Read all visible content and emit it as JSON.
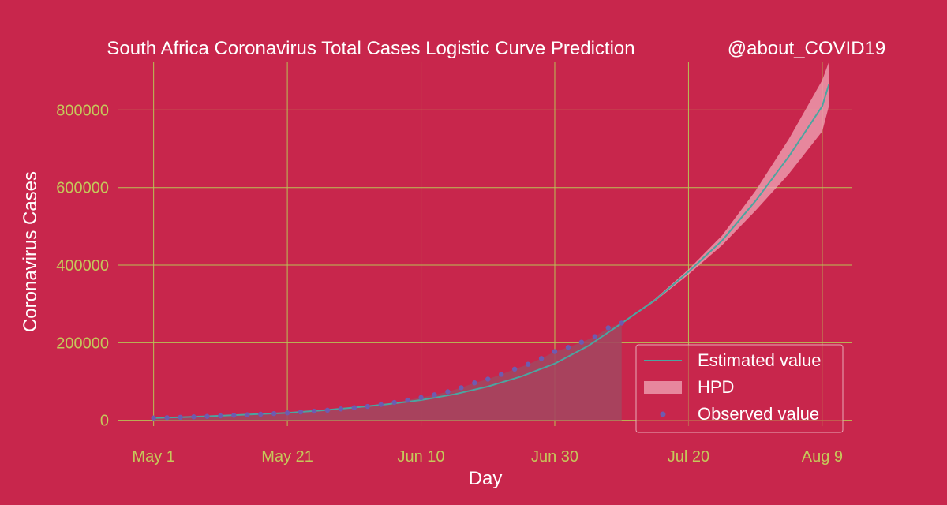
{
  "header": {
    "title": "South Africa Coronavirus Total Cases Logistic Curve Prediction",
    "handle": "@about_COVID19"
  },
  "colors": {
    "background": "#C8264C",
    "grid": "#B9C255",
    "tick_text": "#C5C85A",
    "estimated_line": "#4BA5A0",
    "hpd_fill": "#F1A8B8",
    "observed_points": "#6E5BB0",
    "observed_area": "#A4465F",
    "legend_border": "#E8A9B6"
  },
  "chart_data": {
    "type": "line",
    "title": "South Africa Coronavirus Total Cases Logistic Curve Prediction",
    "xlabel": "Day",
    "ylabel": "Coronavirus Cases",
    "x_tick_labels": [
      "May 1",
      "May 21",
      "Jun 10",
      "Jun 30",
      "Jul 20",
      "Aug 9"
    ],
    "x_tick_days": [
      0,
      20,
      40,
      60,
      80,
      100
    ],
    "xlim": [
      -3.5,
      104.5
    ],
    "y_ticks": [
      0,
      200000,
      400000,
      600000,
      800000
    ],
    "y_tick_labels": [
      "0",
      "200000",
      "400000",
      "600000",
      "800000"
    ],
    "ylim": [
      -15000,
      925000
    ],
    "grid": true,
    "legend_position": "bottom-right",
    "legend": [
      "Estimated value",
      "HPD",
      "Observed value"
    ],
    "x_units": "days since May 1",
    "estimated_days": [
      0,
      5,
      10,
      15,
      20,
      25,
      30,
      35,
      40,
      45,
      50,
      55,
      60,
      65,
      70,
      75,
      80,
      85,
      90,
      95,
      100,
      101
    ],
    "estimated_values": [
      5951,
      8500,
      11700,
      15400,
      19100,
      25300,
      32800,
      41500,
      52100,
      67000,
      87000,
      113000,
      146000,
      191700,
      250000,
      310000,
      383000,
      463000,
      565000,
      680000,
      810000,
      866000
    ],
    "hpd_days": [
      70,
      75,
      80,
      85,
      90,
      95,
      100,
      101
    ],
    "hpd_lower": [
      249000,
      307000,
      376000,
      451000,
      540000,
      635000,
      745000,
      810000
    ],
    "hpd_upper": [
      251000,
      313000,
      389000,
      476000,
      591000,
      725000,
      877000,
      924000
    ],
    "observed_days": [
      0,
      2,
      4,
      6,
      8,
      10,
      12,
      14,
      16,
      18,
      20,
      22,
      24,
      26,
      28,
      30,
      32,
      34,
      36,
      38,
      40,
      42,
      44,
      46,
      48,
      50,
      52,
      54,
      56,
      58,
      60,
      62,
      64,
      66,
      68,
      70
    ],
    "observed_values": [
      5951,
      6800,
      7800,
      8900,
      10000,
      11350,
      12740,
      14350,
      15500,
      17200,
      19140,
      21340,
      23600,
      25940,
      29240,
      32680,
      35810,
      40790,
      45970,
      52000,
      58570,
      65740,
      73530,
      83890,
      96380,
      106110,
      118380,
      131800,
      144260,
      159330,
      177120,
      187980,
      201300,
      215860,
      238340,
      250690
    ]
  }
}
